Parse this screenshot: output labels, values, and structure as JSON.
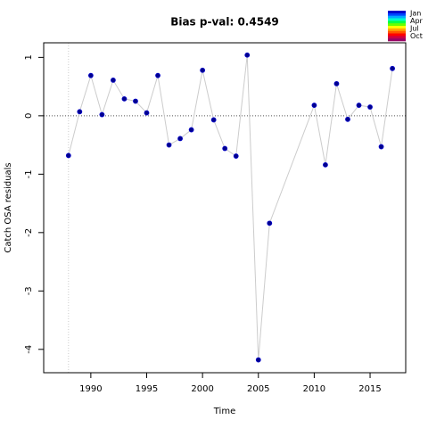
{
  "chart_data": {
    "type": "line",
    "title": "Bias p-val: 0.4549",
    "title_color": "#228b22",
    "x_label": "Time",
    "y_label": "Catch OSA residuals",
    "x": [
      1988,
      1989,
      1990,
      1991,
      1992,
      1993,
      1994,
      1995,
      1996,
      1997,
      1998,
      1999,
      2000,
      2001,
      2002,
      2003,
      2004,
      2005,
      2006,
      2010,
      2011,
      2012,
      2013,
      2014,
      2015,
      2016,
      2017
    ],
    "series": [
      {
        "name": "Catch OSA residuals",
        "color": "#0000cd",
        "line_color": "#cccccc",
        "values": [
          -0.68,
          0.07,
          0.69,
          0.02,
          0.61,
          0.29,
          0.25,
          0.05,
          0.69,
          -0.5,
          -0.39,
          -0.24,
          0.78,
          -0.07,
          -0.56,
          -0.69,
          1.04,
          -4.18,
          -1.84,
          0.18,
          -0.84,
          0.55,
          -0.06,
          0.18,
          0.15,
          -0.53,
          0.81
        ]
      }
    ],
    "xlim": [
      1985.78,
      2018.19
    ],
    "ylim": [
      -4.4,
      1.25
    ],
    "xticks": [
      1990,
      1995,
      2000,
      2005,
      2010,
      2015
    ],
    "yticks": [
      1,
      0,
      -1,
      -2,
      -3,
      -4
    ],
    "reference_lines": {
      "x": 1988,
      "y": 0
    },
    "legend_labels": [
      "Jan",
      "Apr",
      "Jul",
      "Oct"
    ],
    "legend_colors": [
      "#0000cc",
      "#0044ff",
      "#00aaff",
      "#00ffcc",
      "#00ff44",
      "#66ff00",
      "#ffff00",
      "#ffaa00",
      "#ff5500",
      "#ff0000",
      "#cc0044",
      "#990066"
    ]
  }
}
